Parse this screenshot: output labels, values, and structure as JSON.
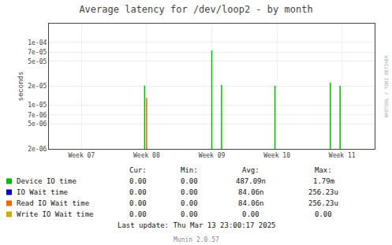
{
  "chart_data": {
    "type": "spike",
    "title": "Average latency for /dev/loop2 - by month",
    "y_label": "seconds",
    "log": "y",
    "grid": true,
    "xlim": [
      6.5,
      11.5
    ],
    "xticks": [
      {
        "value": 7,
        "label": "Week 07"
      },
      {
        "value": 8,
        "label": "Week 08"
      },
      {
        "value": 9,
        "label": "Week 09"
      },
      {
        "value": 10,
        "label": "Week 10"
      },
      {
        "value": 11,
        "label": "Week 11"
      }
    ],
    "ylim": [
      2e-06,
      0.0002
    ],
    "yticks": [
      {
        "value": 0.0001,
        "label": "1e-04"
      },
      {
        "value": 7e-05,
        "label": "7e-05"
      },
      {
        "value": 5e-05,
        "label": "5e-05"
      },
      {
        "value": 2e-05,
        "label": "2e-05"
      },
      {
        "value": 1e-05,
        "label": "1e-05"
      },
      {
        "value": 7e-06,
        "label": "7e-06"
      },
      {
        "value": 5e-06,
        "label": "5e-06"
      },
      {
        "value": 2e-06,
        "label": "2e-06"
      }
    ],
    "stats_headers": [
      "Cur:",
      "Min:",
      "Avg:",
      "Max:"
    ],
    "series": [
      {
        "name": "Device IO time",
        "color": "#00bb00",
        "x": [
          7.97,
          9.0,
          9.15,
          9.97,
          10.82,
          10.97
        ],
        "values": [
          2.05e-05,
          7.5e-05,
          2.1e-05,
          2.05e-05,
          2.3e-05,
          2.05e-05
        ],
        "stats": [
          "0.00",
          "0.00",
          "487.09n",
          "1.79m"
        ]
      },
      {
        "name": "IO Wait time",
        "color": "#0000cc",
        "x": [],
        "values": [],
        "stats": [
          "0.00",
          "0.00",
          "84.06n",
          "256.23u"
        ]
      },
      {
        "name": "Read IO Wait time",
        "color": "#ee6600",
        "x": [
          8.0,
          9.03,
          9.18,
          10.0,
          10.85,
          11.0
        ],
        "values": [
          1.3e-05,
          2e-06,
          2e-06,
          2e-06,
          2e-06,
          2e-06
        ],
        "stats": [
          "0.00",
          "0.00",
          "84.06n",
          "256.23u"
        ]
      },
      {
        "name": "Write IO Wait time",
        "color": "#ccaa00",
        "x": [],
        "values": [],
        "stats": [
          "0.00",
          "0.00",
          "0.00",
          "0.00"
        ]
      }
    ],
    "annotations": [
      "Last update: Thu Mar 13 23:00:17 2025",
      "Munin 2.0.57",
      "RRDTOOL / TOBI OETIKER"
    ]
  }
}
